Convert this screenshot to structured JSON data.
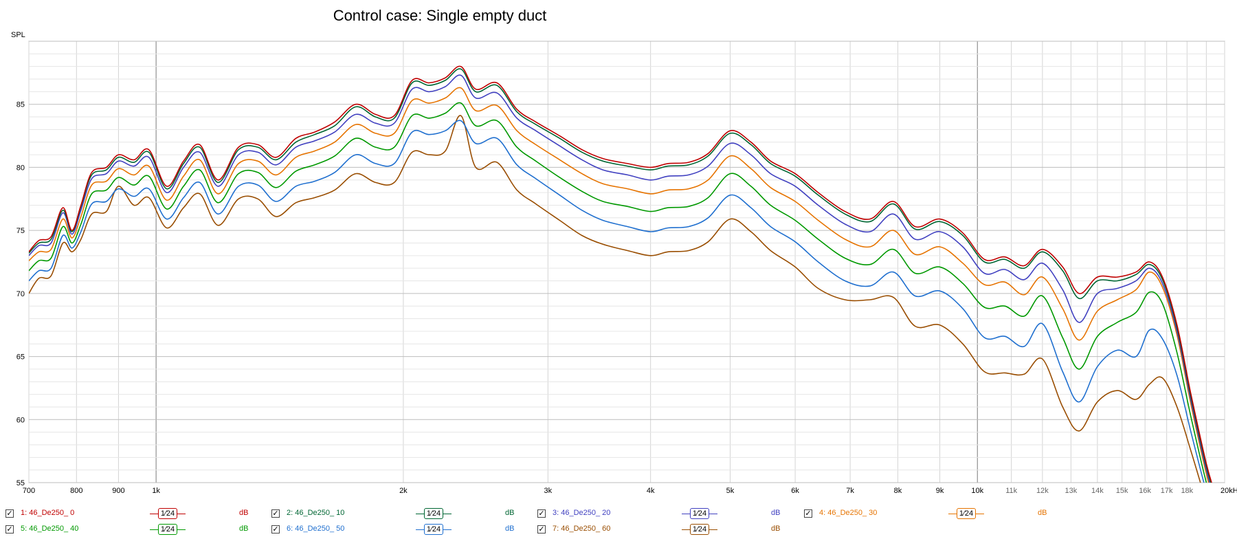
{
  "chart_data": {
    "type": "line",
    "title": "Control case: Single empty duct",
    "ylabel": "SPL",
    "xlabel": "",
    "x_scale": "log",
    "xlim": [
      700,
      20000
    ],
    "ylim": [
      55,
      90
    ],
    "grid": true,
    "y_ticks": [
      "55",
      "60",
      "65",
      "70",
      "75",
      "80",
      "85"
    ],
    "y_tick_values": [
      55,
      60,
      65,
      70,
      75,
      80,
      85
    ],
    "x_ticks": [
      {
        "v": 700,
        "label": "700",
        "minor": false
      },
      {
        "v": 800,
        "label": "800",
        "minor": false
      },
      {
        "v": 900,
        "label": "900",
        "minor": false
      },
      {
        "v": 1000,
        "label": "1k",
        "minor": false
      },
      {
        "v": 2000,
        "label": "2k",
        "minor": false
      },
      {
        "v": 3000,
        "label": "3k",
        "minor": false
      },
      {
        "v": 4000,
        "label": "4k",
        "minor": false
      },
      {
        "v": 5000,
        "label": "5k",
        "minor": false
      },
      {
        "v": 6000,
        "label": "6k",
        "minor": false
      },
      {
        "v": 7000,
        "label": "7k",
        "minor": false
      },
      {
        "v": 8000,
        "label": "8k",
        "minor": false
      },
      {
        "v": 9000,
        "label": "9k",
        "minor": false
      },
      {
        "v": 10000,
        "label": "10k",
        "minor": false
      },
      {
        "v": 11000,
        "label": "11k",
        "minor": true
      },
      {
        "v": 12000,
        "label": "12k",
        "minor": true
      },
      {
        "v": 13000,
        "label": "13k",
        "minor": true
      },
      {
        "v": 14000,
        "label": "14k",
        "minor": true
      },
      {
        "v": 15000,
        "label": "15k",
        "minor": true
      },
      {
        "v": 16000,
        "label": "16k",
        "minor": true
      },
      {
        "v": 17000,
        "label": "17k",
        "minor": true
      },
      {
        "v": 18000,
        "label": "18k",
        "minor": true
      },
      {
        "v": 20000,
        "label": "20kHz",
        "minor": false
      }
    ],
    "x": [
      700,
      720,
      745,
      770,
      790,
      810,
      835,
      870,
      900,
      940,
      980,
      1030,
      1080,
      1130,
      1190,
      1260,
      1330,
      1400,
      1480,
      1560,
      1650,
      1750,
      1850,
      1950,
      2050,
      2150,
      2250,
      2350,
      2450,
      2600,
      2750,
      2900,
      3100,
      3300,
      3500,
      3750,
      4000,
      4200,
      4450,
      4700,
      5000,
      5300,
      5600,
      6000,
      6400,
      6900,
      7400,
      7900,
      8400,
      9000,
      9600,
      10200,
      10800,
      11400,
      12000,
      12700,
      13300,
      14000,
      14800,
      15600,
      16200,
      16800,
      17500,
      18200,
      19000,
      19500
    ],
    "series": [
      {
        "name": "1: 46_De250_ 0",
        "color": "#c00000",
        "values": [
          73.3,
          74.2,
          74.5,
          76.8,
          75.0,
          77.0,
          79.6,
          80.0,
          81.0,
          80.6,
          81.4,
          78.5,
          80.5,
          81.8,
          79.0,
          81.6,
          81.8,
          80.8,
          82.3,
          82.8,
          83.6,
          85.0,
          84.2,
          84.1,
          86.9,
          86.7,
          87.1,
          88.0,
          86.2,
          86.7,
          84.6,
          83.6,
          82.5,
          81.4,
          80.7,
          80.3,
          80.0,
          80.3,
          80.4,
          81.1,
          82.9,
          82.0,
          80.5,
          79.5,
          78.0,
          76.5,
          75.9,
          77.3,
          75.3,
          75.9,
          74.8,
          72.7,
          72.9,
          72.2,
          73.5,
          72.1,
          70.0,
          71.3,
          71.3,
          71.7,
          72.5,
          71.3,
          67.5,
          62.0,
          56.5,
          54.0
        ]
      },
      {
        "name": "2: 46_De250_ 10",
        "color": "#006633",
        "values": [
          73.2,
          74.0,
          74.3,
          76.6,
          74.9,
          76.9,
          79.4,
          79.8,
          80.8,
          80.4,
          81.2,
          78.3,
          80.3,
          81.6,
          78.8,
          81.4,
          81.6,
          80.6,
          82.0,
          82.6,
          83.3,
          84.8,
          84.0,
          83.9,
          86.7,
          86.5,
          86.9,
          87.8,
          86.0,
          86.5,
          84.4,
          83.4,
          82.3,
          81.2,
          80.5,
          80.1,
          79.8,
          80.1,
          80.2,
          80.9,
          82.7,
          81.8,
          80.3,
          79.3,
          77.8,
          76.3,
          75.7,
          77.1,
          75.1,
          75.7,
          74.6,
          72.5,
          72.7,
          72.0,
          73.3,
          71.8,
          69.6,
          71.0,
          71.0,
          71.5,
          72.3,
          71.1,
          67.3,
          61.8,
          56.3,
          53.8
        ]
      },
      {
        "name": "3: 46_De250_ 20",
        "color": "#4040c0",
        "values": [
          73.0,
          73.8,
          74.0,
          76.4,
          74.7,
          76.6,
          79.1,
          79.5,
          80.5,
          80.1,
          80.8,
          78.0,
          80.0,
          81.2,
          78.5,
          81.0,
          81.2,
          80.2,
          81.6,
          82.1,
          82.8,
          84.2,
          83.5,
          83.5,
          86.2,
          86.0,
          86.4,
          87.3,
          85.5,
          85.9,
          83.9,
          82.9,
          81.7,
          80.6,
          79.8,
          79.4,
          79.0,
          79.3,
          79.4,
          80.1,
          81.9,
          81.0,
          79.5,
          78.5,
          77.0,
          75.5,
          74.9,
          76.3,
          74.3,
          74.9,
          73.7,
          71.6,
          71.9,
          71.1,
          72.4,
          70.3,
          67.7,
          70.0,
          70.4,
          71.0,
          72.0,
          70.8,
          67.0,
          61.5,
          56.0,
          53.5
        ]
      },
      {
        "name": "4: 46_De250_ 30",
        "color": "#e67300",
        "values": [
          72.6,
          73.3,
          73.5,
          75.9,
          74.4,
          76.1,
          78.6,
          78.9,
          79.9,
          79.4,
          80.1,
          77.4,
          79.3,
          80.6,
          77.9,
          80.3,
          80.5,
          79.4,
          80.8,
          81.3,
          82.0,
          83.4,
          82.7,
          82.7,
          85.3,
          85.1,
          85.5,
          86.3,
          84.5,
          84.9,
          82.9,
          81.8,
          80.6,
          79.5,
          78.7,
          78.3,
          77.9,
          78.2,
          78.3,
          79.0,
          80.9,
          79.9,
          78.4,
          77.3,
          75.8,
          74.3,
          73.7,
          75.0,
          73.1,
          73.7,
          72.4,
          70.7,
          70.9,
          69.9,
          71.3,
          68.8,
          66.3,
          68.6,
          69.5,
          70.3,
          71.7,
          70.5,
          66.7,
          61.2,
          55.7,
          53.2
        ]
      },
      {
        "name": "5: 46_De250_ 40",
        "color": "#009900",
        "values": [
          71.8,
          72.6,
          72.8,
          75.3,
          74.0,
          75.5,
          77.9,
          78.2,
          79.2,
          78.6,
          79.3,
          76.7,
          78.5,
          79.8,
          77.2,
          79.5,
          79.6,
          78.4,
          79.7,
          80.2,
          80.9,
          82.3,
          81.6,
          81.6,
          84.1,
          83.9,
          84.3,
          85.1,
          83.3,
          83.7,
          81.6,
          80.5,
          79.2,
          78.1,
          77.3,
          76.9,
          76.5,
          76.8,
          76.9,
          77.6,
          79.5,
          78.5,
          77.0,
          75.8,
          74.3,
          72.8,
          72.3,
          73.5,
          71.6,
          72.1,
          70.8,
          68.9,
          69.0,
          68.2,
          69.8,
          66.5,
          64.0,
          66.6,
          67.7,
          68.5,
          70.1,
          69.2,
          65.3,
          60.2,
          55.0,
          52.8
        ]
      },
      {
        "name": "6: 46_De250_ 50",
        "color": "#1f6fcf",
        "values": [
          71.0,
          71.8,
          72.0,
          74.6,
          73.6,
          74.9,
          77.1,
          77.3,
          78.3,
          77.7,
          78.3,
          75.9,
          77.6,
          78.8,
          76.3,
          78.5,
          78.6,
          77.3,
          78.5,
          78.9,
          79.6,
          81.0,
          80.3,
          80.3,
          82.8,
          82.6,
          82.9,
          83.7,
          81.9,
          82.3,
          80.2,
          79.1,
          77.8,
          76.6,
          75.8,
          75.3,
          74.9,
          75.2,
          75.3,
          76.0,
          77.8,
          76.8,
          75.3,
          74.1,
          72.5,
          71.0,
          70.6,
          71.7,
          69.8,
          70.2,
          68.8,
          66.5,
          66.6,
          65.8,
          67.6,
          63.8,
          61.4,
          64.2,
          65.5,
          65.0,
          67.1,
          66.4,
          63.5,
          59.0,
          54.3,
          52.3
        ]
      },
      {
        "name": "7: 46_De250_ 60",
        "color": "#994d00",
        "values": [
          70.0,
          71.2,
          71.4,
          74.0,
          73.3,
          74.3,
          76.3,
          76.5,
          78.5,
          77.0,
          77.6,
          75.2,
          76.8,
          77.9,
          75.4,
          77.5,
          77.5,
          76.1,
          77.2,
          77.6,
          78.2,
          79.5,
          78.8,
          78.8,
          81.2,
          81.0,
          81.3,
          84.1,
          80.0,
          80.4,
          78.2,
          77.1,
          75.8,
          74.6,
          73.9,
          73.4,
          73.0,
          73.3,
          73.4,
          74.1,
          75.9,
          74.9,
          73.4,
          72.1,
          70.4,
          69.5,
          69.5,
          69.7,
          67.4,
          67.5,
          66.0,
          63.8,
          63.7,
          63.6,
          64.8,
          61.0,
          59.1,
          61.4,
          62.3,
          61.6,
          62.8,
          63.3,
          61.0,
          57.5,
          53.5,
          51.8
        ]
      }
    ]
  },
  "legend": {
    "smooth_label": "1⁄24",
    "unit_label": "dB",
    "check_mark": "✓"
  }
}
